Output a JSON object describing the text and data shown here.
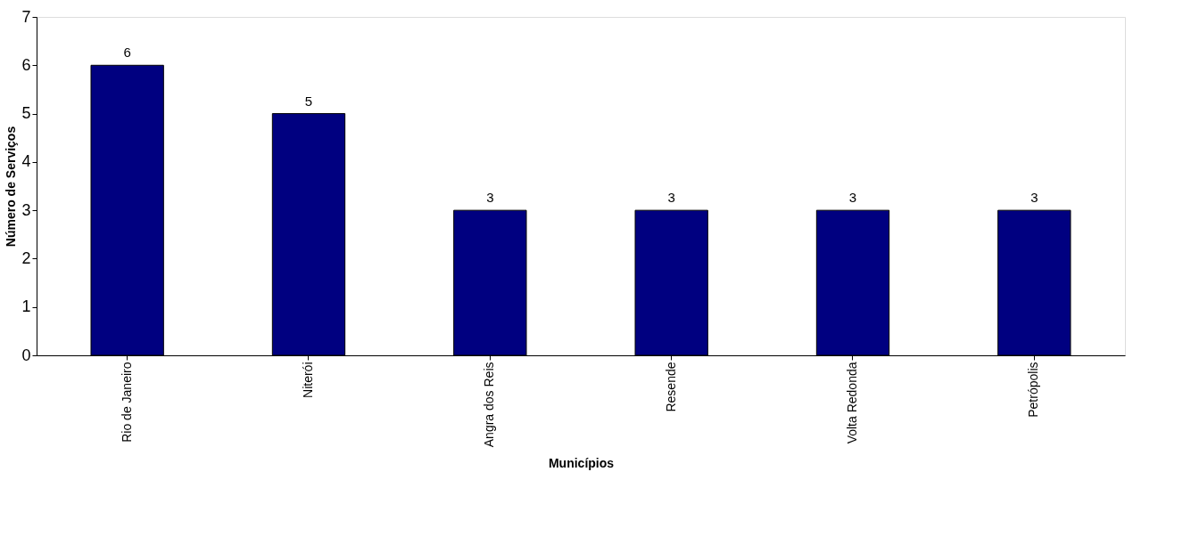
{
  "chart_data": {
    "type": "bar",
    "xlabel": "Municípios",
    "ylabel": "Número de Serviços",
    "categories": [
      "Rio de Janeiro",
      "Niterói",
      "Angra dos Reis",
      "Resende",
      "Volta Redonda",
      "Petrópolis"
    ],
    "values": [
      6,
      5,
      3,
      3,
      3,
      3
    ],
    "color": "#000080",
    "ylim": [
      0,
      7
    ],
    "yticks": [
      0,
      1,
      2,
      3,
      4,
      5,
      6,
      7
    ],
    "grid": false,
    "data_labels": true
  }
}
